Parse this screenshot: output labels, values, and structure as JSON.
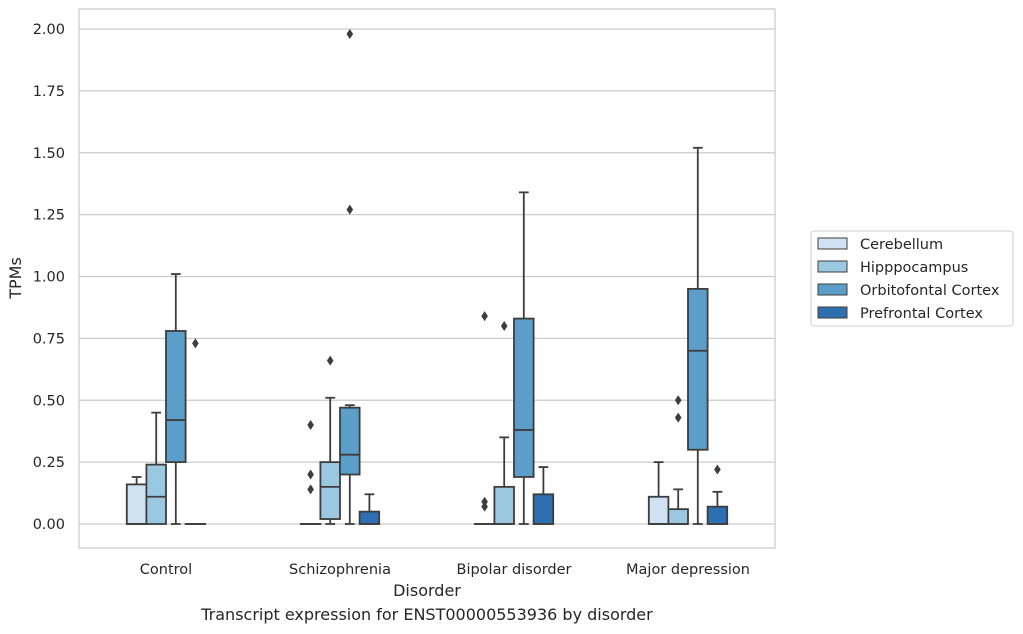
{
  "caption": "Transcript expression for ENST00000553936 by disorder",
  "chart_data": {
    "type": "box",
    "title": "",
    "xlabel": "Disorder",
    "ylabel": "TPMs",
    "ylim": [
      -0.1,
      2.08
    ],
    "yticks": [
      0.0,
      0.25,
      0.5,
      0.75,
      1.0,
      1.25,
      1.5,
      1.75,
      2.0
    ],
    "ytick_labels": [
      "0.00",
      "0.25",
      "0.50",
      "0.75",
      "1.00",
      "1.25",
      "1.50",
      "1.75",
      "2.00"
    ],
    "grid": "horizontal",
    "legend_position": "right",
    "categories": [
      "Control",
      "Schizophrenia",
      "Bipolar disorder",
      "Major depression"
    ],
    "series": [
      {
        "name": "Cerebellum",
        "color": "#d0e1f2",
        "boxes": [
          {
            "min": 0.0,
            "q1": 0.0,
            "median": 0.0,
            "q3": 0.16,
            "max": 0.19,
            "outliers": []
          },
          {
            "min": 0.0,
            "q1": 0.0,
            "median": 0.0,
            "q3": 0.0,
            "max": 0.0,
            "outliers": [
              0.14,
              0.2,
              0.4
            ]
          },
          {
            "min": 0.0,
            "q1": 0.0,
            "median": 0.0,
            "q3": 0.0,
            "max": 0.0,
            "outliers": [
              0.07,
              0.09,
              0.84
            ]
          },
          {
            "min": 0.0,
            "q1": 0.0,
            "median": 0.0,
            "q3": 0.11,
            "max": 0.25,
            "outliers": []
          }
        ]
      },
      {
        "name": "Hipppocampus",
        "color": "#9ac8e0",
        "boxes": [
          {
            "min": 0.0,
            "q1": 0.0,
            "median": 0.11,
            "q3": 0.24,
            "max": 0.45,
            "outliers": []
          },
          {
            "min": 0.0,
            "q1": 0.02,
            "median": 0.15,
            "q3": 0.25,
            "max": 0.51,
            "outliers": [
              0.66
            ]
          },
          {
            "min": 0.0,
            "q1": 0.0,
            "median": 0.0,
            "q3": 0.15,
            "max": 0.35,
            "outliers": [
              0.8
            ]
          },
          {
            "min": 0.0,
            "q1": 0.0,
            "median": 0.0,
            "q3": 0.06,
            "max": 0.14,
            "outliers": [
              0.43,
              0.5
            ]
          }
        ]
      },
      {
        "name": "Orbitofontal Cortex",
        "color": "#5a9ec9",
        "boxes": [
          {
            "min": 0.0,
            "q1": 0.25,
            "median": 0.42,
            "q3": 0.78,
            "max": 1.01,
            "outliers": []
          },
          {
            "min": 0.0,
            "q1": 0.2,
            "median": 0.28,
            "q3": 0.47,
            "max": 0.48,
            "outliers": [
              1.27,
              1.98
            ]
          },
          {
            "min": 0.0,
            "q1": 0.19,
            "median": 0.38,
            "q3": 0.83,
            "max": 1.34,
            "outliers": []
          },
          {
            "min": 0.0,
            "q1": 0.3,
            "median": 0.7,
            "q3": 0.95,
            "max": 1.52,
            "outliers": []
          }
        ]
      },
      {
        "name": "Prefrontal Cortex",
        "color": "#2e6fb0",
        "boxes": [
          {
            "min": 0.0,
            "q1": 0.0,
            "median": 0.0,
            "q3": 0.0,
            "max": 0.0,
            "outliers": [
              0.73
            ]
          },
          {
            "min": 0.0,
            "q1": 0.0,
            "median": 0.0,
            "q3": 0.05,
            "max": 0.12,
            "outliers": []
          },
          {
            "min": 0.0,
            "q1": 0.0,
            "median": 0.0,
            "q3": 0.12,
            "max": 0.23,
            "outliers": []
          },
          {
            "min": 0.0,
            "q1": 0.0,
            "median": 0.0,
            "q3": 0.07,
            "max": 0.13,
            "outliers": [
              0.22
            ]
          }
        ]
      }
    ]
  }
}
